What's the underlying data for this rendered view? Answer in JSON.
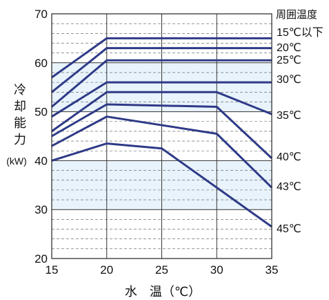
{
  "chart_data": {
    "type": "line",
    "xlabel": "水　温（℃）",
    "ylabel_lines": [
      "冷",
      "却",
      "能",
      "力",
      "(kW)"
    ],
    "xlim": [
      15,
      35
    ],
    "ylim": [
      20,
      70
    ],
    "x_ticks": [
      15,
      20,
      25,
      30,
      35
    ],
    "y_ticks": [
      20,
      30,
      40,
      50,
      60,
      70
    ],
    "legend_title": "周囲温度",
    "line_color": "#2e3a87",
    "band_color": "#e8f3fb",
    "grid_color": "#555555",
    "series": [
      {
        "name": "15℃以下",
        "x": [
          15,
          20,
          35
        ],
        "y": [
          57,
          65,
          65
        ]
      },
      {
        "name": "20℃",
        "x": [
          15,
          20,
          35
        ],
        "y": [
          54,
          63,
          63
        ]
      },
      {
        "name": "25℃",
        "x": [
          15,
          20,
          35
        ],
        "y": [
          51,
          60.5,
          60.5
        ]
      },
      {
        "name": "30℃",
        "x": [
          15,
          20,
          35
        ],
        "y": [
          49,
          56,
          56
        ]
      },
      {
        "name": "35℃",
        "x": [
          15,
          20,
          30,
          35
        ],
        "y": [
          46,
          54,
          54,
          49.5
        ]
      },
      {
        "name": "40℃",
        "x": [
          15,
          20,
          30,
          35
        ],
        "y": [
          45,
          51.5,
          51,
          40.5
        ]
      },
      {
        "name": "43℃",
        "x": [
          15,
          20,
          30,
          35
        ],
        "y": [
          43,
          49,
          45.5,
          34.5
        ]
      },
      {
        "name": "45℃",
        "x": [
          15,
          20,
          25,
          35
        ],
        "y": [
          40,
          43.5,
          42.5,
          26.5
        ]
      }
    ]
  }
}
